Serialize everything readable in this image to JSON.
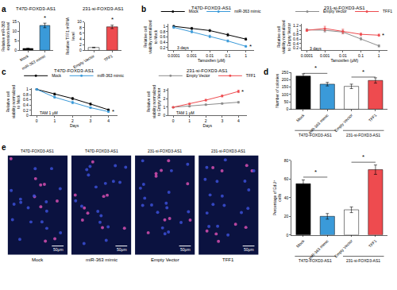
{
  "chart_data": [
    {
      "panel": "a",
      "type": "bar",
      "title": "T47D-FOXD3-AS1",
      "y_label": "Relative miR-363 expression level",
      "categories": [
        "Mock",
        "miR-363 mimic"
      ],
      "values": [
        1,
        13.2
      ],
      "errors": [
        0.15,
        1.2
      ],
      "colors": [
        "#000000",
        "#3a9ad9"
      ],
      "ylim": [
        0,
        15
      ],
      "yticks": [
        0,
        5,
        10,
        15
      ],
      "annotations": [
        {
          "text": "*",
          "x": 1,
          "y": 14.6
        }
      ]
    },
    {
      "type": "bar",
      "title": "231-si-FOXD3-AS1",
      "y_label": "Relative TFF1 mRNA level",
      "categories": [
        "Empty Vector",
        "TFF1"
      ],
      "values": [
        1,
        8.3
      ],
      "errors": [
        0.1,
        0.6
      ],
      "colors": [
        "#ffffff",
        "#ee4b4f"
      ],
      "ylim": [
        0,
        10
      ],
      "yticks": [
        0,
        2,
        4,
        6,
        8,
        10
      ],
      "annotations": [
        {
          "text": "*",
          "x": 1,
          "y": 9.1
        }
      ]
    },
    {
      "panel": "b",
      "type": "line",
      "title": "T47D-FOXD3-AS1",
      "x_label": "Tamoxifen (μM)",
      "y_label": "Relative cell viability normalized to Mock",
      "log": "x",
      "x": [
        0.0001,
        0.001,
        0.01,
        0.1,
        1
      ],
      "xlim": [
        5e-05,
        3
      ],
      "xticks": [
        0.0001,
        0.001,
        0.01,
        0.1,
        1
      ],
      "ylim": [
        0.1,
        1.1
      ],
      "yticks": [
        0.2,
        0.4,
        0.6,
        0.8,
        1
      ],
      "legend": "top",
      "series": [
        {
          "name": "Mock",
          "color": "#000000",
          "marker": "circle",
          "line_style": "solid",
          "values": [
            1,
            0.92,
            0.84,
            0.68,
            0.52
          ],
          "errors": [
            0.03,
            0.04,
            0.04,
            0.05,
            0.04
          ]
        },
        {
          "name": "miR-363 mimic",
          "color": "#3a9ad9",
          "marker": "circle",
          "line_style": "solid",
          "values": [
            0.96,
            0.8,
            0.62,
            0.45,
            0.25
          ],
          "errors": [
            0.04,
            0.05,
            0.05,
            0.04,
            0.03
          ]
        }
      ],
      "annotations": [
        {
          "text": "3 days",
          "x": 0.0001,
          "y": 0.2
        },
        {
          "text": "*",
          "x": 1,
          "y": 0.25
        }
      ]
    },
    {
      "type": "line",
      "title": "231-si-FOXD3-AS1",
      "x_label": "Tamoxifen (μM)",
      "y_label": "Relative cell viability normalized to Empty Vector",
      "log": "x",
      "x": [
        0.0001,
        0.001,
        0.01,
        0.1,
        1
      ],
      "xlim": [
        5e-05,
        3
      ],
      "xticks": [
        0.0001,
        0.001,
        0.01,
        0.1,
        1
      ],
      "ylim": [
        0.1,
        1.3
      ],
      "yticks": [
        0.2,
        0.4,
        0.6,
        0.8,
        1,
        1.2
      ],
      "legend": "top",
      "series": [
        {
          "name": "Empty Vector",
          "color": "#8c8c8c",
          "marker": "circle",
          "line_style": "solid",
          "values": [
            1.02,
            1,
            0.92,
            0.62,
            0.3
          ],
          "errors": [
            0.05,
            0.08,
            0.08,
            0.06,
            0.05
          ]
        },
        {
          "name": "TFF1",
          "color": "#ee4b4f",
          "marker": "circle",
          "line_style": "solid",
          "values": [
            1,
            1.08,
            0.95,
            0.82,
            0.78
          ],
          "errors": [
            0.05,
            0.1,
            0.1,
            0.06,
            0.05
          ]
        }
      ],
      "annotations": [
        {
          "text": "3 days",
          "x": 0.0001,
          "y": 0.2
        },
        {
          "text": "*",
          "x": 1,
          "y": 0.78
        }
      ]
    },
    {
      "panel": "c",
      "type": "line",
      "title": "T47D-FOXD3-AS1",
      "x_label": "Days",
      "y_label": "Relative cell viability normalized to Mock",
      "x": [
        0,
        1,
        2,
        3,
        4
      ],
      "xlim": [
        -0.3,
        4.5
      ],
      "xticks": [
        0,
        1,
        2,
        3,
        4
      ],
      "ylim": [
        0,
        1.05
      ],
      "yticks": [
        0,
        0.2,
        0.4,
        0.6,
        0.8,
        1
      ],
      "legend": "top",
      "series": [
        {
          "name": "Mock",
          "color": "#000000",
          "marker": "circle",
          "line_style": "solid",
          "values": [
            1,
            0.82,
            0.65,
            0.44,
            0.22
          ],
          "errors": [
            0.02,
            0.04,
            0.04,
            0.04,
            0.03
          ]
        },
        {
          "name": "miR-363 mimic",
          "color": "#3a9ad9",
          "marker": "circle",
          "line_style": "solid",
          "values": [
            1,
            0.7,
            0.5,
            0.3,
            0.15
          ],
          "errors": [
            0.02,
            0.04,
            0.05,
            0.03,
            0.02
          ]
        }
      ],
      "annotations": [
        {
          "text": "TAM 1 μM",
          "x": 0,
          "y": 0.1
        },
        {
          "text": "*",
          "x": 4,
          "y": 0.15
        }
      ]
    },
    {
      "type": "line",
      "title": "231-si-FOXD3-AS1",
      "x_label": "Days",
      "y_label": "Relative cell viability normalized to Empty Vector",
      "x": [
        0,
        1,
        2,
        3,
        4
      ],
      "xlim": [
        -0.3,
        4.5
      ],
      "xticks": [
        0,
        1,
        2,
        3,
        4
      ],
      "ylim": [
        0,
        3.3
      ],
      "yticks": [
        0,
        1,
        2,
        3
      ],
      "legend": "top",
      "series": [
        {
          "name": "Empty Vector",
          "color": "#8c8c8c",
          "marker": "circle",
          "line_style": "solid",
          "values": [
            1,
            1.12,
            1.3,
            1.45,
            1.6
          ],
          "errors": [
            0.04,
            0.06,
            0.08,
            0.08,
            0.1
          ]
        },
        {
          "name": "TFF1",
          "color": "#ee4b4f",
          "marker": "circle",
          "line_style": "solid",
          "values": [
            1,
            1.4,
            1.85,
            2.35,
            2.9
          ],
          "errors": [
            0.04,
            0.08,
            0.1,
            0.12,
            0.15
          ]
        }
      ],
      "annotations": [
        {
          "text": "TAM 1 μM",
          "x": 0,
          "y": 0.3
        },
        {
          "text": "*",
          "x": 4,
          "y": 2.9
        }
      ]
    },
    {
      "panel": "d",
      "type": "bar",
      "y_label": "Number of colonies",
      "categories": [
        "Mock",
        "miR-363 mimic",
        "Empty Vector",
        "TFF1"
      ],
      "values": [
        225,
        170,
        155,
        195
      ],
      "errors": [
        15,
        12,
        15,
        18
      ],
      "colors": [
        "#000000",
        "#3a9ad9",
        "#ffffff",
        "#ee4b4f"
      ],
      "ylim": [
        0,
        250
      ],
      "yticks": [
        0,
        50,
        100,
        150,
        200,
        250
      ],
      "groups": [
        "T47D-FOXD3-AS1",
        "231-si-FOXD3-AS1"
      ],
      "annotations": [
        {
          "text": "*",
          "x": 0.5,
          "y": 243
        },
        {
          "text": "*",
          "x": 2.5,
          "y": 218
        }
      ]
    },
    {
      "panel": "e",
      "type": "images",
      "images": [
        {
          "label": "T47D-FOXD3-AS1",
          "caption": "Mock",
          "scale_bar": "50μm"
        },
        {
          "label": "T47D-FOXD3-AS1",
          "caption": "miR-363 mimic",
          "scale_bar": "50μm"
        },
        {
          "label": "231-si-FOXD3-AS1",
          "caption": "Empty Vector",
          "scale_bar": "50μm"
        },
        {
          "label": "231-si-FOXD3-AS1",
          "caption": "TFF1",
          "scale_bar": "50μm"
        }
      ]
    },
    {
      "type": "bar",
      "y_label": "Percentage of EdU⁺ cells",
      "categories": [
        "Mock",
        "miR-363 mimic",
        "Empty Vector",
        "TFF1"
      ],
      "values": [
        55,
        20,
        27,
        70
      ],
      "errors": [
        4,
        3,
        3,
        5
      ],
      "colors": [
        "#000000",
        "#3a9ad9",
        "#ffffff",
        "#ee4b4f"
      ],
      "ylim": [
        0,
        80
      ],
      "yticks": [
        0,
        20,
        40,
        60,
        80
      ],
      "groups": [
        "T47D-FOXD3-AS1",
        "231-si-FOXD3-AS1"
      ],
      "annotations": [
        {
          "text": "*",
          "x": 0.5,
          "y": 62
        },
        {
          "text": "*",
          "x": 2.5,
          "y": 78
        }
      ]
    }
  ]
}
